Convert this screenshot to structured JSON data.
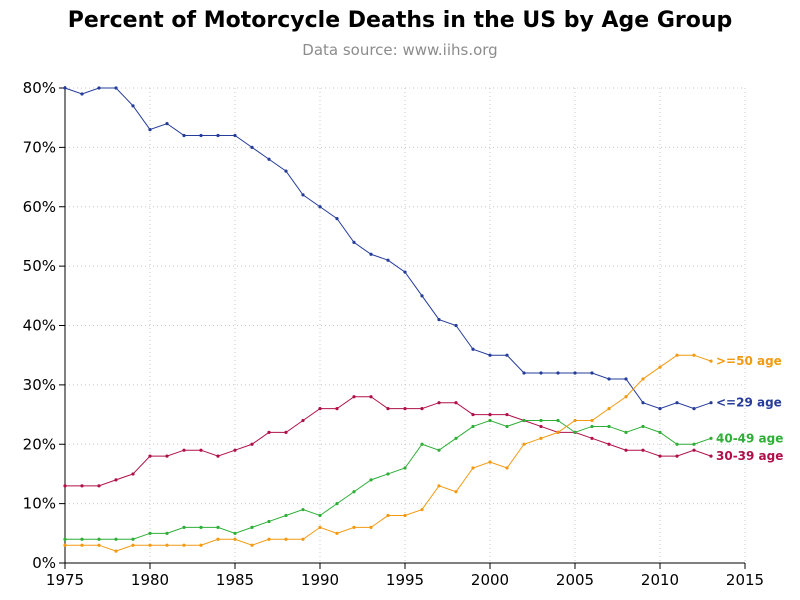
{
  "chart_data": {
    "type": "line",
    "title": "Percent of Motorcycle Deaths in the US by Age Group",
    "subtitle": "Data source: www.iihs.org",
    "xlim": [
      1975,
      2015
    ],
    "ylim": [
      0,
      80
    ],
    "x_ticks": [
      1975,
      1980,
      1985,
      1990,
      1995,
      2000,
      2005,
      2010,
      2015
    ],
    "y_ticks": [
      0,
      10,
      20,
      30,
      40,
      50,
      60,
      70,
      80
    ],
    "y_tick_labels": [
      "0%",
      "10%",
      "20%",
      "30%",
      "40%",
      "50%",
      "60%",
      "70%",
      "80%"
    ],
    "grid": true,
    "x": [
      1975,
      1976,
      1977,
      1978,
      1979,
      1980,
      1981,
      1982,
      1983,
      1984,
      1985,
      1986,
      1987,
      1988,
      1989,
      1990,
      1991,
      1992,
      1993,
      1994,
      1995,
      1996,
      1997,
      1998,
      1999,
      2000,
      2001,
      2002,
      2003,
      2004,
      2005,
      2006,
      2007,
      2008,
      2009,
      2010,
      2011,
      2012,
      2013
    ],
    "series": [
      {
        "name": "<=29 age",
        "color": "#253c9a",
        "values": [
          80,
          79,
          80,
          80,
          77,
          73,
          74,
          72,
          72,
          72,
          72,
          70,
          68,
          66,
          62,
          60,
          58,
          54,
          52,
          51,
          49,
          45,
          41,
          40,
          36,
          35,
          35,
          32,
          32,
          32,
          32,
          32,
          31,
          31,
          27,
          26,
          27,
          26,
          27
        ]
      },
      {
        "name": "30-39 age",
        "color": "#b0104a",
        "values": [
          13,
          13,
          13,
          14,
          15,
          18,
          18,
          19,
          19,
          18,
          19,
          20,
          22,
          22,
          24,
          26,
          26,
          28,
          28,
          26,
          26,
          26,
          27,
          27,
          25,
          25,
          25,
          24,
          23,
          22,
          22,
          21,
          20,
          19,
          19,
          18,
          18,
          19,
          18
        ]
      },
      {
        "name": "40-49 age",
        "color": "#2fae38",
        "values": [
          4,
          4,
          4,
          4,
          4,
          5,
          5,
          6,
          6,
          6,
          5,
          6,
          7,
          8,
          9,
          8,
          10,
          12,
          14,
          15,
          16,
          20,
          19,
          21,
          23,
          24,
          23,
          24,
          24,
          24,
          22,
          23,
          23,
          22,
          23,
          22,
          20,
          20,
          21
        ]
      },
      {
        "name": ">=50 age",
        "color": "#f29a12",
        "values": [
          3,
          3,
          3,
          2,
          3,
          3,
          3,
          3,
          3,
          4,
          4,
          3,
          4,
          4,
          4,
          6,
          5,
          6,
          6,
          8,
          8,
          9,
          13,
          12,
          16,
          17,
          16,
          20,
          21,
          22,
          24,
          24,
          26,
          28,
          31,
          33,
          35,
          35,
          34
        ]
      }
    ]
  }
}
